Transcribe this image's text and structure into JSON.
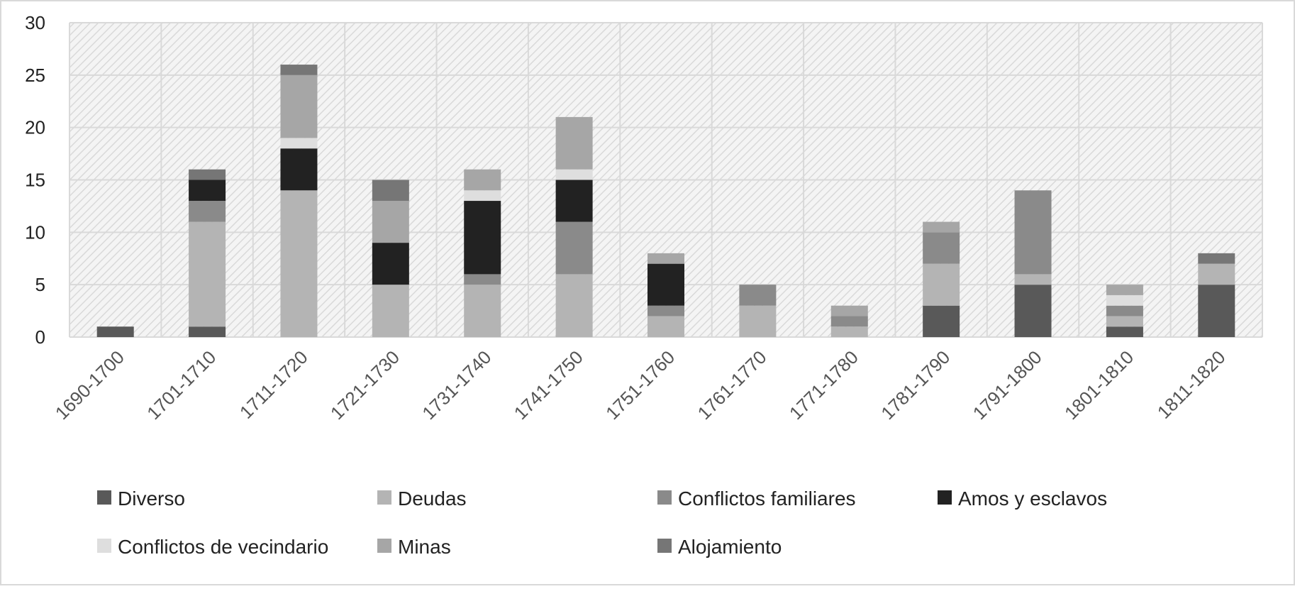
{
  "chart_data": {
    "type": "bar",
    "stacked": true,
    "categories": [
      "1690-1700",
      "1701-1710",
      "1711-1720",
      "1721-1730",
      "1731-1740",
      "1741-1750",
      "1751-1760",
      "1761-1770",
      "1771-1780",
      "1781-1790",
      "1791-1800",
      "1801-1810",
      "1811-1820"
    ],
    "ylim": [
      0,
      30
    ],
    "yticks": [
      0,
      5,
      10,
      15,
      20,
      25,
      30
    ],
    "grid": true,
    "legend_position": "bottom",
    "title": "",
    "xlabel": "",
    "ylabel": "",
    "series": [
      {
        "name": "Diverso",
        "color": "#595959",
        "values": [
          1,
          1,
          0,
          0,
          0,
          0,
          0,
          0,
          0,
          3,
          5,
          1,
          5
        ]
      },
      {
        "name": "Deudas",
        "color": "#b4b4b4",
        "values": [
          0,
          10,
          14,
          5,
          5,
          6,
          2,
          3,
          1,
          4,
          1,
          1,
          2
        ]
      },
      {
        "name": "Conflictos familiares",
        "color": "#8a8a8a",
        "values": [
          0,
          2,
          0,
          0,
          1,
          5,
          1,
          2,
          1,
          3,
          8,
          1,
          0
        ]
      },
      {
        "name": "Amos y esclavos",
        "color": "#222222",
        "values": [
          0,
          2,
          4,
          4,
          7,
          4,
          4,
          0,
          0,
          0,
          0,
          0,
          0
        ]
      },
      {
        "name": "Conflictos de vecindario",
        "color": "#dedede",
        "values": [
          0,
          0,
          1,
          0,
          1,
          1,
          0,
          0,
          0,
          0,
          0,
          1,
          0
        ]
      },
      {
        "name": "Minas",
        "color": "#a6a6a6",
        "values": [
          0,
          0,
          6,
          4,
          2,
          5,
          1,
          0,
          1,
          1,
          0,
          1,
          0
        ]
      },
      {
        "name": "Alojamiento",
        "color": "#767676",
        "values": [
          0,
          1,
          1,
          2,
          0,
          0,
          0,
          0,
          0,
          0,
          0,
          0,
          1
        ]
      }
    ]
  }
}
